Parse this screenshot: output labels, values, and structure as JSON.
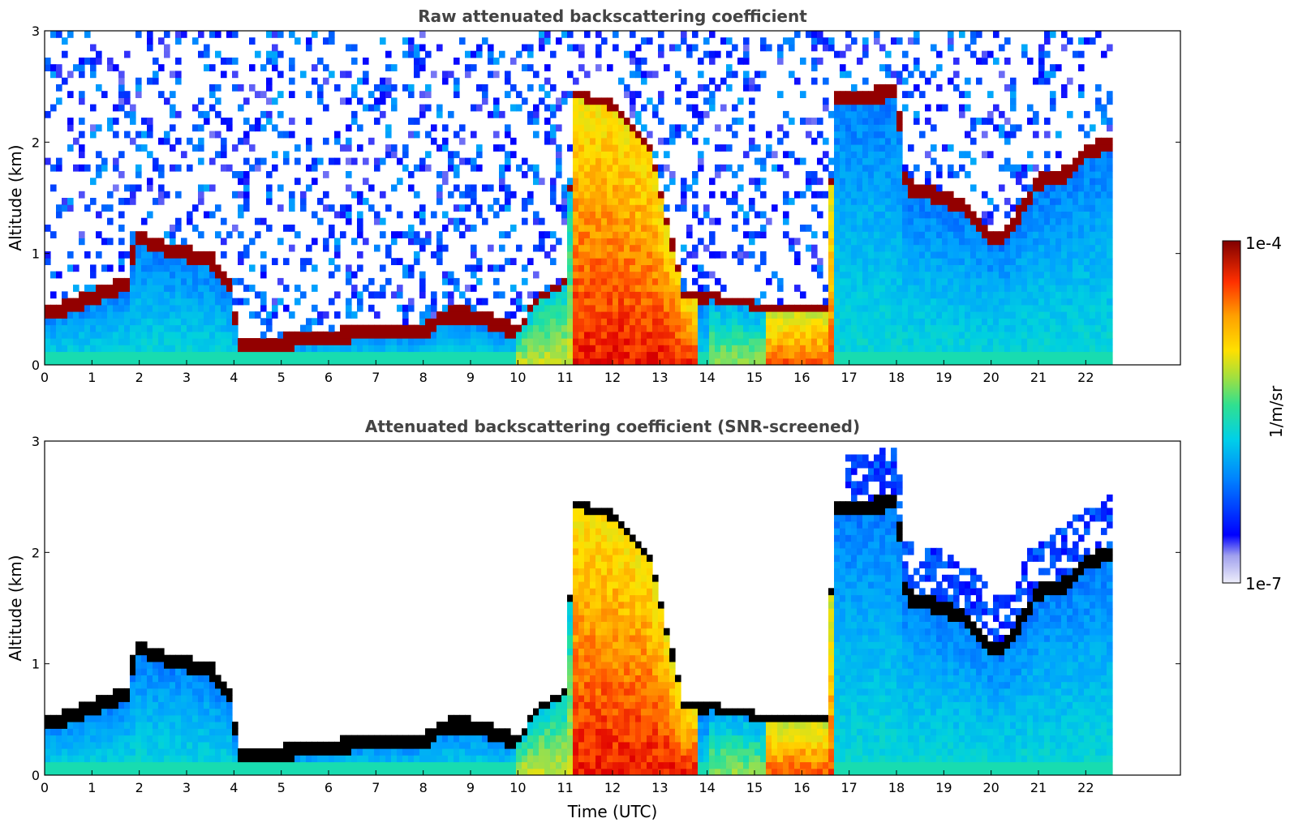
{
  "chart_data": [
    {
      "type": "heatmap",
      "id": "raw",
      "title": "Raw attenuated backscattering coefficient",
      "xlabel": "",
      "ylabel": "Altitude (km)",
      "xlim": [
        0,
        24
      ],
      "ylim": [
        0,
        3
      ],
      "x_ticks": [
        0,
        1,
        2,
        3,
        4,
        5,
        6,
        7,
        8,
        9,
        10,
        11,
        12,
        13,
        14,
        15,
        16,
        17,
        18,
        19,
        20,
        21,
        22
      ],
      "y_ticks": [
        0,
        1,
        2,
        3
      ],
      "data_end_time": 22.5,
      "screened": false,
      "boundary_layer_top_km": [
        [
          0,
          0.45
        ],
        [
          1,
          0.6
        ],
        [
          1.8,
          0.75
        ],
        [
          1.9,
          1.15
        ],
        [
          2.5,
          1.05
        ],
        [
          3.5,
          0.95
        ],
        [
          3.9,
          0.7
        ],
        [
          4.1,
          0.2
        ],
        [
          5,
          0.2
        ],
        [
          6,
          0.25
        ],
        [
          7,
          0.3
        ],
        [
          8,
          0.3
        ],
        [
          8.5,
          0.45
        ],
        [
          9,
          0.45
        ],
        [
          10,
          0.3
        ],
        [
          10.5,
          0.6
        ],
        [
          11,
          0.7
        ],
        [
          11.2,
          2.4
        ],
        [
          12,
          2.3
        ],
        [
          12.8,
          1.9
        ],
        [
          13.5,
          0.6
        ],
        [
          14.5,
          0.55
        ],
        [
          15,
          0.5
        ],
        [
          15.5,
          0.45
        ],
        [
          16,
          0.5
        ],
        [
          16.5,
          0.45
        ],
        [
          16.7,
          2.4
        ],
        [
          17,
          2.4
        ],
        [
          18,
          2.45
        ],
        [
          18.2,
          1.6
        ],
        [
          19,
          1.5
        ],
        [
          19.5,
          1.4
        ],
        [
          20,
          1.15
        ],
        [
          20.3,
          1.15
        ],
        [
          21,
          1.65
        ],
        [
          21.5,
          1.7
        ],
        [
          22,
          1.9
        ],
        [
          22.5,
          2.0
        ]
      ]
    },
    {
      "type": "heatmap",
      "id": "snr",
      "title": "Attenuated backscattering coefficient (SNR-screened)",
      "xlabel": "Time (UTC)",
      "ylabel": "Altitude (km)",
      "xlim": [
        0,
        24
      ],
      "ylim": [
        0,
        3
      ],
      "x_ticks": [
        0,
        1,
        2,
        3,
        4,
        5,
        6,
        7,
        8,
        9,
        10,
        11,
        12,
        13,
        14,
        15,
        16,
        17,
        18,
        19,
        20,
        21,
        22
      ],
      "y_ticks": [
        0,
        1,
        2,
        3
      ],
      "data_end_time": 22.5,
      "screened": true
    }
  ],
  "colorbar": {
    "label": "1/m/sr",
    "min_label": "1e-7",
    "max_label": "1e-4",
    "colors": [
      "#e8e8f6",
      "#c8c8f0",
      "#a0a0f0",
      "#0000ff",
      "#0050ff",
      "#00a0ff",
      "#00d0e0",
      "#20e0a0",
      "#80e060",
      "#d0e020",
      "#ffe000",
      "#ffa000",
      "#ff5000",
      "#e00000",
      "#a00000",
      "#800000"
    ]
  }
}
